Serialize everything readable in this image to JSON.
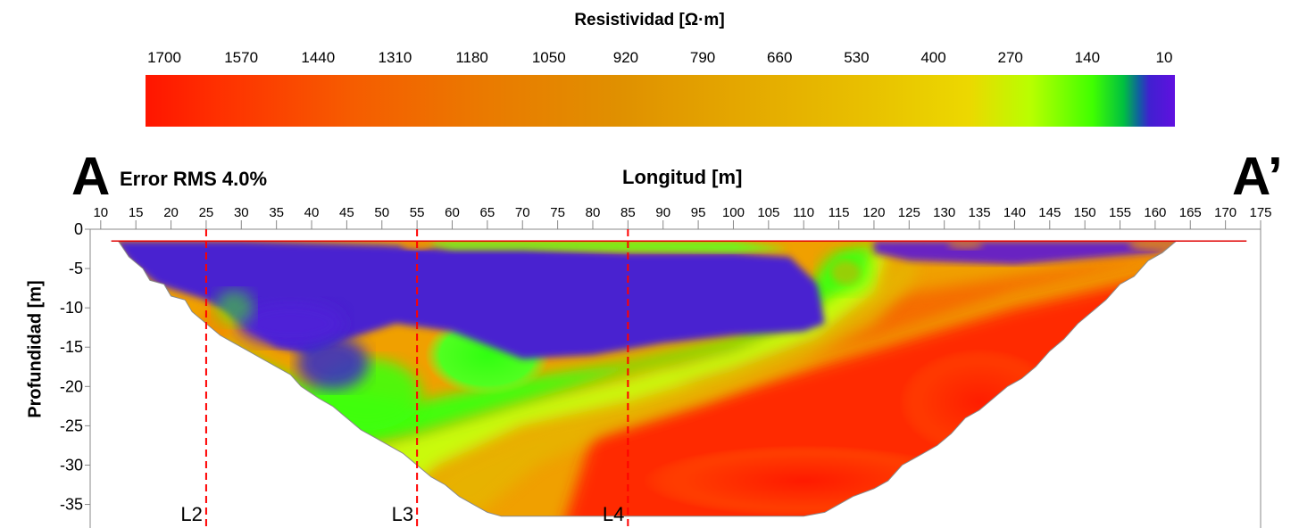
{
  "colorbar": {
    "title": "Resistividad  [Ω·m]",
    "ticks": [
      "1700",
      "1570",
      "1440",
      "1310",
      "1180",
      "1050",
      "920",
      "790",
      "660",
      "530",
      "400",
      "270",
      "140",
      "10"
    ],
    "colors": [
      "#ff1500",
      "#ff3000",
      "#f65c00",
      "#ea7a00",
      "#e09000",
      "#e4a800",
      "#e8c000",
      "#ecd800",
      "#b8ff00",
      "#40ff00",
      "#00c040",
      "#1060a0",
      "#4020d0",
      "#6010e0"
    ]
  },
  "labels": {
    "left_letter": "A",
    "right_letter": "A’",
    "rms": "Error RMS 4.0%"
  },
  "chart_data": {
    "type": "heatmap",
    "title": "Resistividad  [Ω·m]",
    "xlabel": "Longitud [m]",
    "ylabel": "Profundidad [m]",
    "xlim": [
      8.5,
      175
    ],
    "ylim": [
      -38,
      0
    ],
    "x_ticks": [
      "10",
      "15",
      "20",
      "25",
      "30",
      "35",
      "40",
      "45",
      "50",
      "55",
      "60",
      "65",
      "70",
      "75",
      "80",
      "85",
      "90",
      "95",
      "100",
      "105",
      "110",
      "115",
      "120",
      "125",
      "130",
      "135",
      "140",
      "145",
      "150",
      "155",
      "160",
      "165",
      "170",
      "175"
    ],
    "y_ticks": [
      "0",
      "-5",
      "-10",
      "-15",
      "-20",
      "-25",
      "-30",
      "-35"
    ],
    "grid": false,
    "resistivity_range": [
      10,
      1700
    ],
    "annotations": [
      {
        "label": "L2",
        "x": 25
      },
      {
        "label": "L3",
        "x": 55
      },
      {
        "label": "L4",
        "x": 85
      }
    ]
  }
}
